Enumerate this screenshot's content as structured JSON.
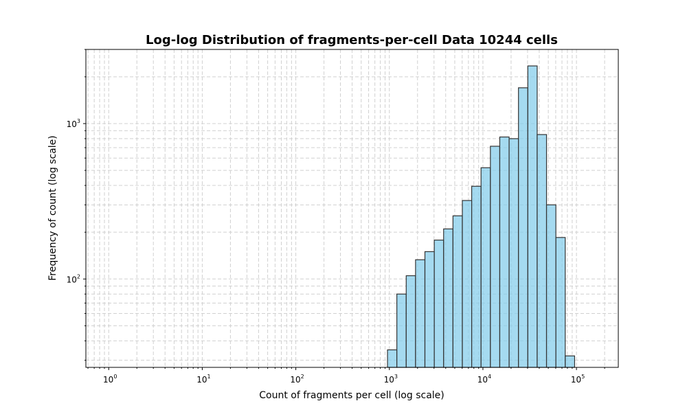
{
  "chart_data": {
    "type": "bar",
    "title": "Log-log Distribution of fragments-per-cell Data 10244 cells",
    "xlabel": "Count of fragments per cell (log scale)",
    "ylabel": "Frequency of count (log scale)",
    "x_scale": "log",
    "y_scale": "log",
    "xlim": [
      0.57,
      280000
    ],
    "ylim": [
      27,
      3000
    ],
    "grid": true,
    "grid_style": "dashed",
    "x_ticks": [
      {
        "value": 1,
        "base": "10",
        "exp": "0"
      },
      {
        "value": 10,
        "base": "10",
        "exp": "1"
      },
      {
        "value": 100,
        "base": "10",
        "exp": "2"
      },
      {
        "value": 1000,
        "base": "10",
        "exp": "3"
      },
      {
        "value": 10000,
        "base": "10",
        "exp": "4"
      },
      {
        "value": 100000,
        "base": "10",
        "exp": "5"
      }
    ],
    "y_ticks": [
      {
        "value": 100,
        "base": "10",
        "exp": "2"
      },
      {
        "value": 1000,
        "base": "10",
        "exp": "3"
      }
    ],
    "bar_fill": "#87ceeb",
    "bar_edge": "#333333",
    "bins": [
      {
        "x0": 955,
        "x1": 1202,
        "count": 35
      },
      {
        "x0": 1202,
        "x1": 1514,
        "count": 80
      },
      {
        "x0": 1514,
        "x1": 1905,
        "count": 105
      },
      {
        "x0": 1905,
        "x1": 2399,
        "count": 133
      },
      {
        "x0": 2399,
        "x1": 3020,
        "count": 150
      },
      {
        "x0": 3020,
        "x1": 3802,
        "count": 178
      },
      {
        "x0": 3802,
        "x1": 4786,
        "count": 210
      },
      {
        "x0": 4786,
        "x1": 6026,
        "count": 255
      },
      {
        "x0": 6026,
        "x1": 7586,
        "count": 320
      },
      {
        "x0": 7586,
        "x1": 9550,
        "count": 395
      },
      {
        "x0": 9550,
        "x1": 12023,
        "count": 520
      },
      {
        "x0": 12023,
        "x1": 15136,
        "count": 715
      },
      {
        "x0": 15136,
        "x1": 19055,
        "count": 820
      },
      {
        "x0": 19055,
        "x1": 23988,
        "count": 800
      },
      {
        "x0": 23988,
        "x1": 30200,
        "count": 1700
      },
      {
        "x0": 30200,
        "x1": 38019,
        "count": 2350
      },
      {
        "x0": 38019,
        "x1": 47863,
        "count": 850
      },
      {
        "x0": 47863,
        "x1": 60256,
        "count": 300
      },
      {
        "x0": 60256,
        "x1": 75858,
        "count": 185
      },
      {
        "x0": 75858,
        "x1": 95499,
        "count": 32
      }
    ]
  }
}
